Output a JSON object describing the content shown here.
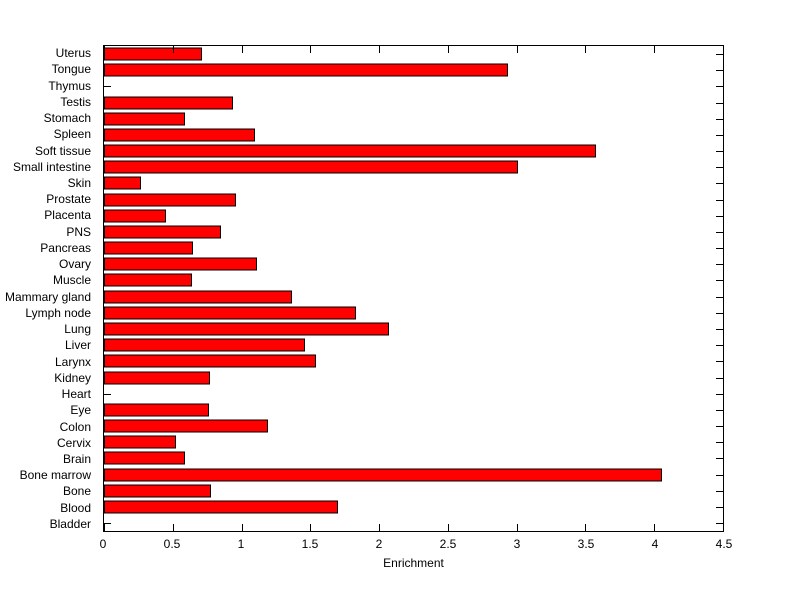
{
  "chart_data": {
    "type": "bar",
    "orientation": "horizontal",
    "title": "",
    "xlabel": "Enrichment",
    "ylabel": "",
    "categories": [
      "Uterus",
      "Tongue",
      "Thymus",
      "Testis",
      "Stomach",
      "Spleen",
      "Soft tissue",
      "Small intestine",
      "Skin",
      "Prostate",
      "Placenta",
      "PNS",
      "Pancreas",
      "Ovary",
      "Muscle",
      "Mammary gland",
      "Lymph node",
      "Lung",
      "Liver",
      "Larynx",
      "Kidney",
      "Heart",
      "Eye",
      "Colon",
      "Cervix",
      "Brain",
      "Bone marrow",
      "Bone",
      "Blood",
      "Bladder"
    ],
    "values": [
      0.71,
      2.94,
      0,
      0.94,
      0.59,
      1.1,
      3.58,
      3.01,
      0.27,
      0.96,
      0.45,
      0.85,
      0.65,
      1.11,
      0.64,
      1.37,
      1.83,
      2.07,
      1.46,
      1.54,
      0.77,
      0,
      0.76,
      1.19,
      0.52,
      0.59,
      4.06,
      0.78,
      1.7,
      0
    ],
    "xlim": [
      0,
      4.5
    ],
    "xticks": [
      0,
      0.5,
      1,
      1.5,
      2,
      2.5,
      3,
      3.5,
      4,
      4.5
    ],
    "bar_color": "#FF0000",
    "bar_edge_color": "#000000",
    "axis_color": "#000000",
    "background_color": "#FFFFFF",
    "grid": false,
    "legend": null
  }
}
